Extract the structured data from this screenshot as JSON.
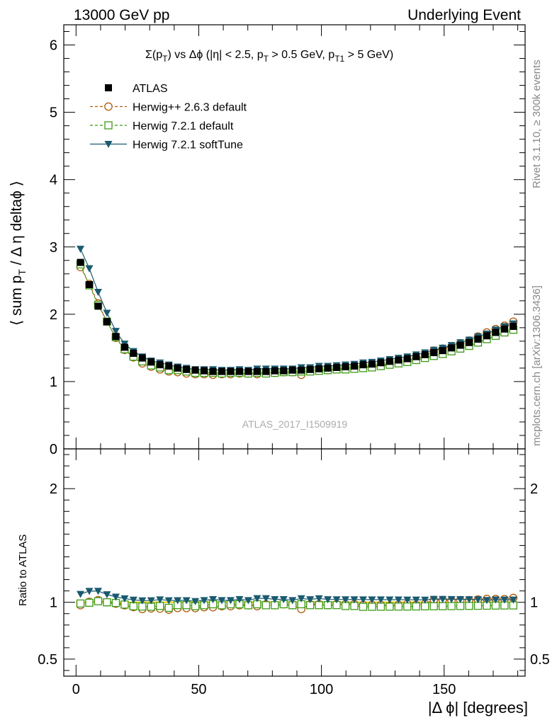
{
  "header": {
    "left": "13000 GeV pp",
    "right": "Underlying Event"
  },
  "side_labels": {
    "top": "Rivet 3.1.10, ≥ 300k events",
    "bottom": "mcplots.cern.ch [arXiv:1306.3436]"
  },
  "colors": {
    "atlas": "#000000",
    "herwig_263": "#b05a0a",
    "herwig_721": "#3c9a14",
    "herwig_721_soft": "#1a5a70"
  },
  "chart_data": [
    {
      "type": "scatter",
      "panel": "main",
      "title_parts": {
        "sigma": "Σ(p",
        "sigma_sub": "T",
        "rest1": ") vs Δϕ (|η| < 2.5, p",
        "sub1": "T",
        "rest2": " > 0.5 GeV, p",
        "sub2": "T1",
        "rest3": " > 5 GeV)"
      },
      "ylabel": "⟨ sum p",
      "ylabel_sub": "T",
      "ylabel_rest": " / Δ η deltaϕ ⟩",
      "watermark": "ATLAS_2017_I1509919",
      "xlim": [
        -5,
        183
      ],
      "ylim": [
        0,
        6.3
      ],
      "xticks": [
        0,
        50,
        100,
        150
      ],
      "yticks": [
        0,
        1,
        2,
        3,
        4,
        5,
        6
      ],
      "ytick_labels": [
        "0",
        "1",
        "2",
        "3",
        "4",
        "5",
        "6"
      ],
      "x": [
        1.8,
        5.4,
        9.0,
        12.6,
        16.2,
        19.8,
        23.4,
        27.0,
        30.6,
        34.2,
        37.8,
        41.4,
        45.0,
        48.6,
        52.2,
        55.8,
        59.4,
        63.0,
        66.6,
        70.2,
        73.8,
        77.4,
        81.0,
        84.6,
        88.2,
        91.8,
        95.4,
        99.0,
        102.6,
        106.2,
        109.8,
        113.4,
        117.0,
        120.6,
        124.2,
        127.8,
        131.4,
        135.0,
        138.6,
        142.2,
        145.8,
        149.4,
        153.0,
        156.6,
        160.2,
        163.8,
        167.4,
        171.0,
        174.6,
        178.2
      ],
      "series": [
        {
          "name": "ATLAS",
          "marker": "square-filled",
          "values": [
            2.77,
            2.44,
            2.12,
            1.89,
            1.67,
            1.51,
            1.42,
            1.35,
            1.29,
            1.25,
            1.23,
            1.2,
            1.18,
            1.17,
            1.16,
            1.15,
            1.15,
            1.15,
            1.15,
            1.15,
            1.15,
            1.15,
            1.16,
            1.16,
            1.17,
            1.17,
            1.18,
            1.19,
            1.2,
            1.21,
            1.22,
            1.23,
            1.25,
            1.26,
            1.28,
            1.3,
            1.32,
            1.34,
            1.37,
            1.4,
            1.43,
            1.46,
            1.5,
            1.54,
            1.58,
            1.63,
            1.68,
            1.73,
            1.78,
            1.82
          ]
        },
        {
          "name": "Herwig++ 2.6.3 default",
          "marker": "circle-open",
          "values": [
            2.7,
            2.45,
            2.16,
            1.89,
            1.65,
            1.47,
            1.36,
            1.27,
            1.22,
            1.18,
            1.15,
            1.14,
            1.12,
            1.11,
            1.11,
            1.1,
            1.11,
            1.11,
            1.12,
            1.12,
            1.11,
            1.13,
            1.13,
            1.14,
            1.14,
            1.1,
            1.16,
            1.17,
            1.17,
            1.19,
            1.2,
            1.21,
            1.22,
            1.23,
            1.25,
            1.26,
            1.29,
            1.32,
            1.34,
            1.38,
            1.46,
            1.49,
            1.52,
            1.57,
            1.61,
            1.67,
            1.73,
            1.78,
            1.83,
            1.89
          ]
        },
        {
          "name": "Herwig 7.2.1 default",
          "marker": "square-open",
          "values": [
            2.74,
            2.43,
            2.14,
            1.89,
            1.66,
            1.48,
            1.37,
            1.3,
            1.24,
            1.21,
            1.17,
            1.17,
            1.15,
            1.13,
            1.13,
            1.13,
            1.12,
            1.13,
            1.13,
            1.12,
            1.13,
            1.12,
            1.13,
            1.14,
            1.14,
            1.15,
            1.15,
            1.16,
            1.17,
            1.18,
            1.18,
            1.19,
            1.2,
            1.21,
            1.23,
            1.25,
            1.27,
            1.29,
            1.32,
            1.35,
            1.38,
            1.41,
            1.45,
            1.49,
            1.53,
            1.58,
            1.63,
            1.68,
            1.73,
            1.77
          ]
        },
        {
          "name": "Herwig 7.2.1 softTune",
          "marker": "triangle-down-filled",
          "values": [
            2.97,
            2.68,
            2.33,
            2.02,
            1.75,
            1.56,
            1.45,
            1.37,
            1.31,
            1.28,
            1.25,
            1.22,
            1.2,
            1.18,
            1.18,
            1.18,
            1.17,
            1.17,
            1.18,
            1.17,
            1.19,
            1.19,
            1.19,
            1.19,
            1.19,
            1.21,
            1.21,
            1.23,
            1.23,
            1.24,
            1.25,
            1.26,
            1.28,
            1.29,
            1.31,
            1.33,
            1.35,
            1.37,
            1.4,
            1.43,
            1.47,
            1.5,
            1.54,
            1.58,
            1.62,
            1.67,
            1.71,
            1.77,
            1.82,
            1.86
          ]
        }
      ],
      "legend": {
        "placement": "top-left",
        "entries": [
          "ATLAS",
          "Herwig++ 2.6.3 default",
          "Herwig 7.2.1 default",
          "Herwig 7.2.1 softTune"
        ]
      }
    },
    {
      "type": "scatter",
      "panel": "ratio",
      "ylabel": "Ratio to ATLAS",
      "xlabel": "|Δ ϕ| [degrees]",
      "xlim": [
        -5,
        183
      ],
      "ylim": [
        0.35,
        2.35
      ],
      "xticks": [
        0,
        50,
        100,
        150
      ],
      "xtick_labels": [
        "0",
        "50",
        "100",
        "150"
      ],
      "yticks": [
        0.5,
        1,
        2
      ],
      "ytick_labels": [
        "0.5",
        "1",
        "2"
      ],
      "reference_line": 1
    }
  ]
}
